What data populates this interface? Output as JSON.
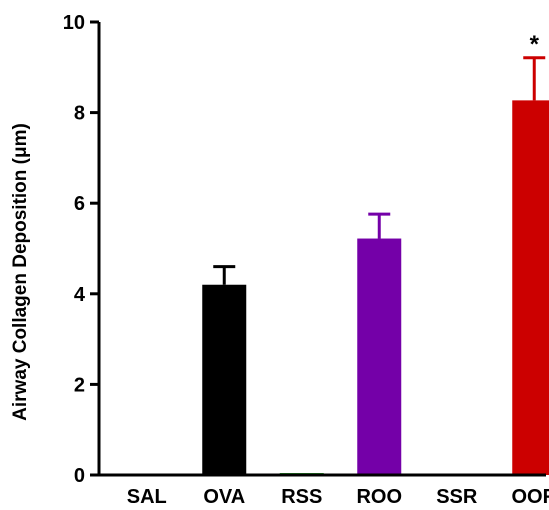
{
  "chart_data": {
    "type": "bar",
    "title": "",
    "xlabel": "",
    "ylabel": "Airway Collagen Deposition (μm)",
    "ylim": [
      0,
      10
    ],
    "yticks": [
      0,
      2,
      4,
      6,
      8,
      10
    ],
    "grid": false,
    "legend": "none",
    "categories": [
      "SAL",
      "OVA",
      "RSS",
      "ROO",
      "SSR",
      "OOR"
    ],
    "values": [
      0,
      4.2,
      0.02,
      5.22,
      0,
      8.27
    ],
    "errors": [
      0,
      0.4,
      0,
      0.54,
      0,
      0.94
    ],
    "colors": [
      "#000000",
      "#000000",
      "#2e9e2e",
      "#7400a8",
      "#000000",
      "#cc0000"
    ],
    "annotations": [
      {
        "category": "OOR",
        "text": "*"
      }
    ]
  }
}
